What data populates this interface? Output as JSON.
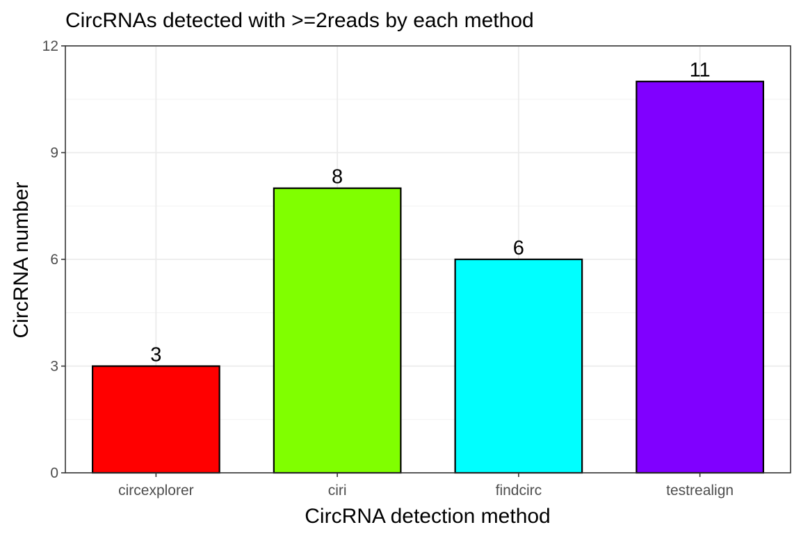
{
  "chart_data": {
    "type": "bar",
    "title": "CircRNAs detected with >=2reads by each method",
    "xlabel": "CircRNA detection method",
    "ylabel": "CircRNA number",
    "categories": [
      "circexplorer",
      "ciri",
      "findcirc",
      "testrealign"
    ],
    "values": [
      3,
      8,
      6,
      11
    ],
    "data_labels": [
      "3",
      "8",
      "6",
      "11"
    ],
    "colors": [
      "#FF0000",
      "#80FF00",
      "#00FFFF",
      "#8000FF"
    ],
    "ylim": [
      0,
      12
    ],
    "yticks": [
      0,
      3,
      6,
      9,
      12
    ],
    "ytick_labels": [
      "0",
      "3",
      "6",
      "9",
      "12"
    ],
    "grid": true,
    "legend": "none"
  }
}
